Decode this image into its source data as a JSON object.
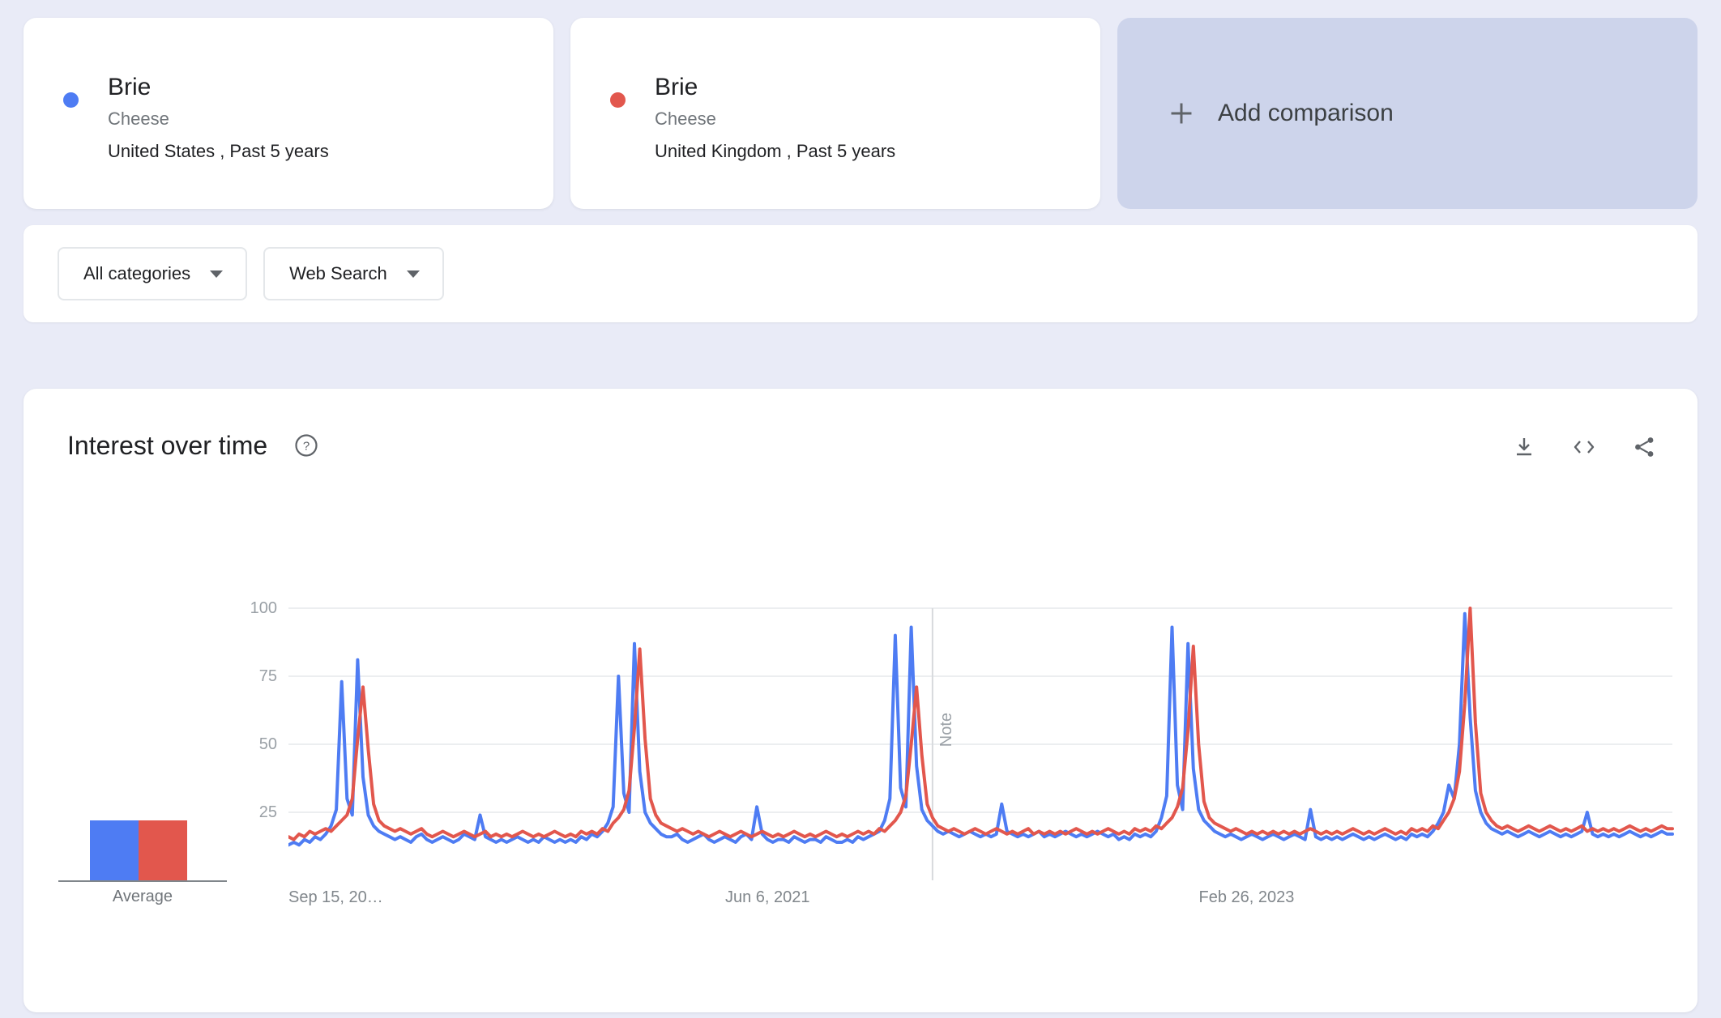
{
  "page": {
    "background": "#e9ebf7"
  },
  "comparison_cards": [
    {
      "term": "Brie",
      "category": "Cheese",
      "scope": "United States , Past 5 years",
      "color": "#4e7cf3"
    },
    {
      "term": "Brie",
      "category": "Cheese",
      "scope": "United Kingdom , Past 5 years",
      "color": "#e2574d"
    }
  ],
  "add_comparison": {
    "label": "Add comparison"
  },
  "filters": {
    "all_categories": "All categories",
    "web_search": "Web Search"
  },
  "widget": {
    "title": "Interest over time"
  },
  "average": {
    "label": "Average",
    "values": [
      22,
      22
    ]
  },
  "chart_data": {
    "type": "line",
    "title": "Interest over time",
    "xlabel": "",
    "ylabel": "",
    "ylim": [
      0,
      100
    ],
    "yticks": [
      25,
      50,
      75,
      100
    ],
    "grid": "horizontal",
    "legend": "none",
    "x_unit": "weekly points over Past 5 years starting Sep 15, 2019",
    "x_ticks": [
      {
        "label": "Sep 15, 20…",
        "index": 0,
        "align": "start"
      },
      {
        "label": "Jun 6, 2021",
        "index": 90,
        "align": "center"
      },
      {
        "label": "Feb 26, 2023",
        "index": 180,
        "align": "center"
      }
    ],
    "note_marker": {
      "label": "Note",
      "index": 121
    },
    "series": [
      {
        "name": "Brie United States",
        "color": "#4e7cf3",
        "values": [
          13,
          14,
          13,
          15,
          14,
          16,
          15,
          17,
          20,
          26,
          73,
          30,
          24,
          81,
          38,
          24,
          20,
          18,
          17,
          16,
          15,
          16,
          15,
          14,
          16,
          17,
          15,
          14,
          15,
          16,
          15,
          14,
          15,
          17,
          16,
          15,
          24,
          16,
          15,
          14,
          15,
          14,
          15,
          16,
          15,
          14,
          15,
          14,
          16,
          15,
          14,
          15,
          14,
          15,
          14,
          16,
          15,
          17,
          16,
          18,
          21,
          27,
          75,
          32,
          25,
          87,
          40,
          25,
          21,
          19,
          17,
          16,
          16,
          17,
          15,
          14,
          15,
          16,
          17,
          15,
          14,
          15,
          16,
          15,
          14,
          16,
          17,
          15,
          27,
          17,
          15,
          14,
          15,
          15,
          14,
          16,
          15,
          14,
          15,
          15,
          14,
          16,
          15,
          14,
          14,
          15,
          14,
          16,
          15,
          16,
          17,
          18,
          22,
          30,
          90,
          34,
          27,
          93,
          42,
          26,
          22,
          20,
          18,
          17,
          18,
          17,
          16,
          17,
          18,
          17,
          16,
          17,
          16,
          17,
          28,
          18,
          17,
          16,
          17,
          16,
          17,
          18,
          16,
          17,
          16,
          17,
          18,
          17,
          16,
          17,
          16,
          17,
          18,
          17,
          16,
          17,
          15,
          16,
          15,
          17,
          16,
          17,
          16,
          18,
          23,
          31,
          93,
          35,
          26,
          87,
          41,
          26,
          22,
          20,
          18,
          17,
          16,
          17,
          16,
          15,
          16,
          17,
          16,
          15,
          16,
          17,
          16,
          15,
          16,
          17,
          16,
          15,
          26,
          16,
          15,
          16,
          15,
          16,
          15,
          16,
          17,
          16,
          15,
          16,
          15,
          16,
          17,
          16,
          15,
          16,
          15,
          17,
          16,
          17,
          16,
          18,
          21,
          25,
          35,
          30,
          50,
          98,
          60,
          33,
          25,
          21,
          19,
          18,
          17,
          18,
          17,
          16,
          17,
          18,
          17,
          16,
          17,
          18,
          17,
          16,
          17,
          16,
          17,
          18,
          25,
          17,
          16,
          17,
          16,
          17,
          16,
          17,
          18,
          17,
          16,
          17,
          16,
          17,
          18,
          17,
          17
        ]
      },
      {
        "name": "Brie United Kingdom",
        "color": "#e2574d",
        "values": [
          16,
          15,
          17,
          16,
          18,
          17,
          18,
          19,
          18,
          20,
          22,
          24,
          30,
          52,
          71,
          48,
          28,
          22,
          20,
          19,
          18,
          19,
          18,
          17,
          18,
          19,
          17,
          16,
          17,
          18,
          17,
          16,
          17,
          18,
          17,
          16,
          17,
          18,
          16,
          17,
          16,
          17,
          16,
          17,
          18,
          17,
          16,
          17,
          16,
          17,
          18,
          17,
          16,
          17,
          16,
          18,
          17,
          18,
          17,
          19,
          18,
          21,
          23,
          26,
          33,
          56,
          85,
          52,
          30,
          24,
          21,
          20,
          19,
          18,
          19,
          18,
          17,
          18,
          17,
          16,
          17,
          18,
          17,
          16,
          17,
          18,
          17,
          16,
          17,
          18,
          17,
          16,
          17,
          16,
          17,
          18,
          17,
          16,
          17,
          16,
          17,
          18,
          17,
          16,
          17,
          16,
          17,
          18,
          17,
          18,
          17,
          19,
          18,
          20,
          22,
          25,
          31,
          50,
          71,
          46,
          28,
          23,
          20,
          19,
          18,
          19,
          18,
          17,
          18,
          19,
          18,
          17,
          18,
          19,
          18,
          17,
          18,
          17,
          18,
          19,
          17,
          18,
          17,
          18,
          17,
          18,
          17,
          18,
          19,
          18,
          17,
          18,
          17,
          18,
          19,
          18,
          17,
          18,
          17,
          19,
          18,
          19,
          18,
          20,
          19,
          21,
          23,
          27,
          34,
          55,
          86,
          50,
          29,
          23,
          21,
          20,
          19,
          18,
          19,
          18,
          17,
          18,
          17,
          18,
          17,
          18,
          17,
          18,
          17,
          18,
          17,
          18,
          19,
          18,
          17,
          18,
          17,
          18,
          17,
          18,
          19,
          18,
          17,
          18,
          17,
          18,
          19,
          18,
          17,
          18,
          17,
          19,
          18,
          19,
          18,
          20,
          19,
          22,
          25,
          30,
          40,
          65,
          100,
          58,
          32,
          25,
          22,
          20,
          19,
          20,
          19,
          18,
          19,
          20,
          19,
          18,
          19,
          20,
          19,
          18,
          19,
          18,
          19,
          20,
          18,
          19,
          18,
          19,
          18,
          19,
          18,
          19,
          20,
          19,
          18,
          19,
          18,
          19,
          20,
          19,
          19
        ]
      }
    ]
  }
}
